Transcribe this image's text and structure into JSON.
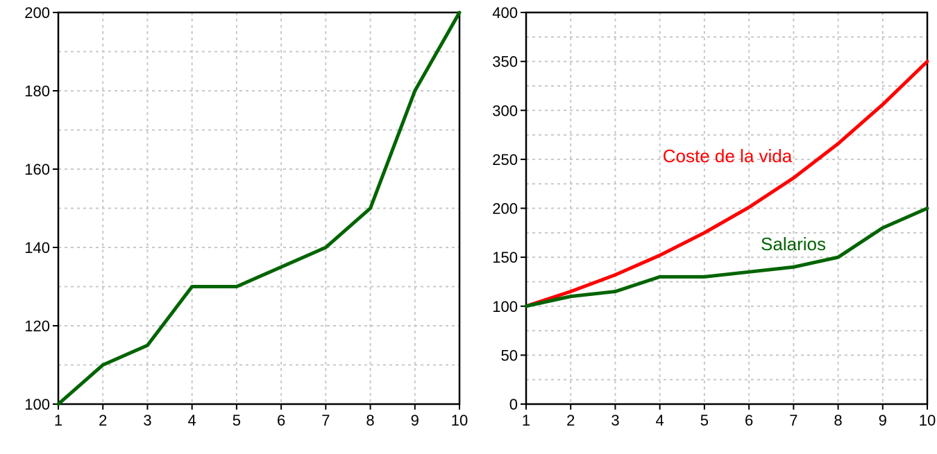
{
  "chart_data": [
    {
      "type": "line",
      "title": "",
      "xlabel": "",
      "ylabel": "",
      "x": [
        1,
        2,
        3,
        4,
        5,
        6,
        7,
        8,
        9,
        10
      ],
      "xlim": [
        1,
        10
      ],
      "ylim": [
        100,
        200
      ],
      "xticks": [
        1,
        2,
        3,
        4,
        5,
        6,
        7,
        8,
        9,
        10
      ],
      "yticks": [
        100,
        120,
        140,
        160,
        180,
        200
      ],
      "grid": true,
      "series": [
        {
          "color": "#006400",
          "values": [
            100,
            110,
            115,
            130,
            130,
            135,
            140,
            150,
            180,
            200
          ]
        }
      ]
    },
    {
      "type": "line",
      "title": "",
      "xlabel": "",
      "ylabel": "",
      "x": [
        1,
        2,
        3,
        4,
        5,
        6,
        7,
        8,
        9,
        10
      ],
      "xlim": [
        1,
        10
      ],
      "ylim": [
        0,
        400
      ],
      "xticks": [
        1,
        2,
        3,
        4,
        5,
        6,
        7,
        8,
        9,
        10
      ],
      "yticks": [
        0,
        50,
        100,
        150,
        200,
        250,
        300,
        350,
        400
      ],
      "grid": true,
      "series": [
        {
          "name": "Coste de la vida",
          "color": "#ff0000",
          "values": [
            100,
            115,
            132,
            152,
            175,
            201,
            231,
            266,
            306,
            350
          ]
        },
        {
          "name": "Salarios",
          "color": "#006400",
          "values": [
            100,
            110,
            115,
            130,
            130,
            135,
            140,
            150,
            180,
            200
          ]
        }
      ]
    }
  ]
}
